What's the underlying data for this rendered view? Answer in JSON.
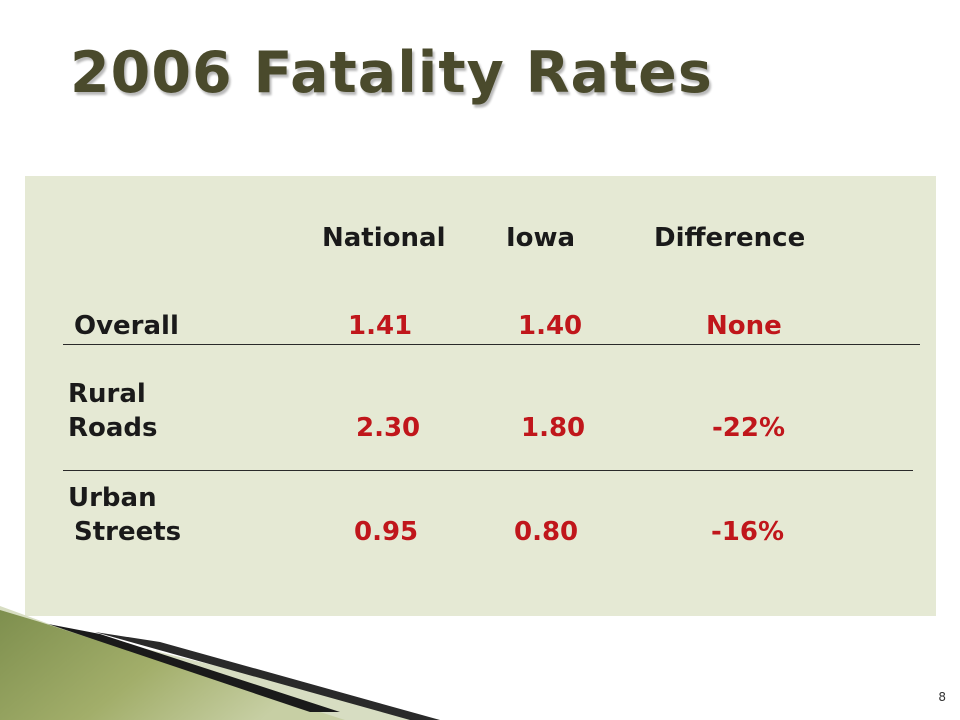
{
  "slide": {
    "title": "2006 Fatality Rates",
    "page_number": "8"
  },
  "table": {
    "headers": {
      "national": "National",
      "iowa": "Iowa",
      "difference": "Difference"
    },
    "rows": [
      {
        "label_line1": "Overall",
        "label_line2": "",
        "national": "1.41",
        "iowa": "1.40",
        "difference": "None"
      },
      {
        "label_line1": "Rural",
        "label_line2": "Roads",
        "national": "2.30",
        "iowa": "1.80",
        "difference": "-22%"
      },
      {
        "label_line1": "Urban",
        "label_line2": "Streets",
        "national": "0.95",
        "iowa": "0.80",
        "difference": "-16%"
      }
    ]
  },
  "colors": {
    "panel_background": "#e5e9d4",
    "value_text": "#c0161b",
    "title_text": "#4a4a2c"
  }
}
